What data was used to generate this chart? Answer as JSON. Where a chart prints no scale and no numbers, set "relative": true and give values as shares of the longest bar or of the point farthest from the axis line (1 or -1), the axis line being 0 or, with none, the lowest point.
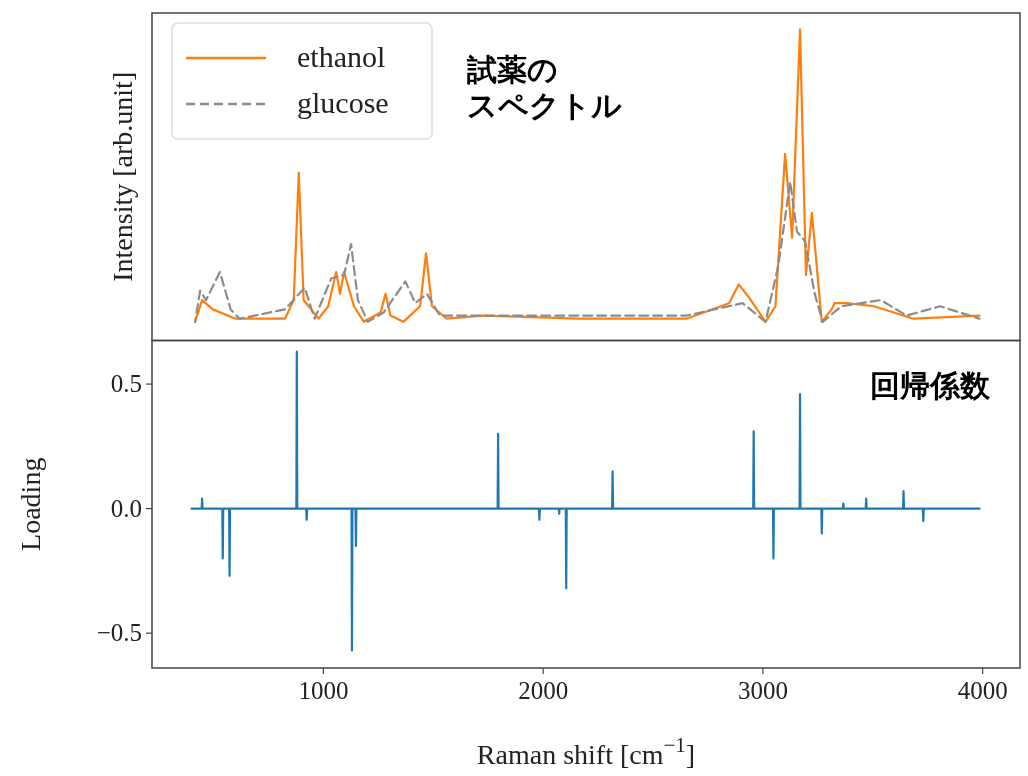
{
  "chart_data": [
    {
      "type": "line",
      "relative": true,
      "ylabel": "Intensity [arb.unit]",
      "xlim": [
        220,
        4170
      ],
      "legend": "top left",
      "annotations": [
        "試薬の",
        "スペクトル"
      ],
      "series": [
        {
          "name": "ethanol",
          "color": "#ff7f0e",
          "line_style": "solid",
          "x": [
            416,
            448,
            497,
            600,
            825,
            865,
            888,
            910,
            978,
            1022,
            1058,
            1076,
            1094,
            1139,
            1184,
            1260,
            1283,
            1305,
            1364,
            1440,
            1467,
            1494,
            1561,
            1723,
            2158,
            2652,
            2846,
            2890,
            2935,
            3012,
            3057,
            3101,
            3133,
            3169,
            3196,
            3223,
            3268,
            3313,
            3326,
            3384,
            3506,
            3685,
            3986
          ],
          "values": [
            0.06,
            0.13,
            0.1,
            0.07,
            0.07,
            0.13,
            0.54,
            0.13,
            0.07,
            0.11,
            0.22,
            0.15,
            0.22,
            0.11,
            0.06,
            0.09,
            0.15,
            0.08,
            0.06,
            0.11,
            0.28,
            0.11,
            0.07,
            0.08,
            0.07,
            0.07,
            0.12,
            0.18,
            0.14,
            0.06,
            0.11,
            0.6,
            0.33,
            1.0,
            0.21,
            0.41,
            0.06,
            0.1,
            0.12,
            0.12,
            0.11,
            0.07,
            0.08
          ]
        },
        {
          "name": "glucose",
          "color": "#8c8c8c",
          "line_style": "dashed",
          "x": [
            416,
            439,
            466,
            529,
            578,
            618,
            825,
            915,
            960,
            1036,
            1094,
            1126,
            1157,
            1202,
            1274,
            1373,
            1418,
            1471,
            1530,
            1723,
            2158,
            2652,
            2908,
            3012,
            3070,
            3124,
            3155,
            3191,
            3236,
            3272,
            3357,
            3537,
            3654,
            3806,
            3986
          ],
          "values": [
            0.06,
            0.16,
            0.13,
            0.22,
            0.1,
            0.07,
            0.1,
            0.17,
            0.07,
            0.2,
            0.21,
            0.31,
            0.13,
            0.06,
            0.09,
            0.19,
            0.12,
            0.15,
            0.08,
            0.08,
            0.08,
            0.08,
            0.12,
            0.06,
            0.24,
            0.51,
            0.35,
            0.32,
            0.15,
            0.06,
            0.11,
            0.13,
            0.08,
            0.11,
            0.07
          ]
        }
      ]
    },
    {
      "type": "line",
      "xlabel": "Raman shift [cm$^{−1}$]",
      "ylabel": "Loading",
      "xlim": [
        220,
        4170
      ],
      "xticks": [
        1000,
        2000,
        3000,
        4000
      ],
      "ylim": [
        -0.64,
        0.675
      ],
      "yticks": [
        {
          "value": -0.5,
          "label": "−0.5"
        },
        {
          "value": 0,
          "label": "0.0"
        },
        {
          "value": 0.5,
          "label": "0.5"
        }
      ],
      "annotations": [
        "回帰係数"
      ],
      "series": [
        {
          "color": "#1f77b4",
          "line_style": "solid",
          "x": [
            400,
            446,
            448,
            450,
            540,
            542,
            544,
            571,
            573,
            575,
            877,
            879,
            881,
            922,
            924,
            926,
            1128,
            1130,
            1132,
            1146,
            1148,
            1150,
            1793,
            1795,
            1797,
            1981,
            1983,
            1985,
            2071,
            2073,
            2075,
            2103,
            2105,
            2107,
            2314,
            2316,
            2318,
            2956,
            2958,
            2960,
            3046,
            3048,
            3050,
            3167,
            3169,
            3171,
            3266,
            3268,
            3270,
            3364,
            3366,
            3368,
            3468,
            3470,
            3472,
            3638,
            3640,
            3642,
            3728,
            3730,
            3732,
            3986
          ],
          "values": [
            0,
            0,
            0.04,
            0,
            0,
            -0.2,
            0,
            0,
            -0.27,
            0,
            0,
            0.63,
            0,
            0,
            -0.045,
            0,
            0,
            -0.57,
            0,
            0,
            -0.15,
            0,
            0,
            0.3,
            0,
            0,
            -0.045,
            0,
            0,
            -0.02,
            0,
            0,
            -0.32,
            0,
            0,
            0.15,
            0,
            0,
            0.31,
            0,
            0,
            -0.2,
            0,
            0,
            0.46,
            0,
            0,
            -0.1,
            0,
            0,
            0.02,
            0,
            0,
            0.04,
            0,
            0,
            0.07,
            0,
            0,
            -0.05,
            0,
            0
          ]
        }
      ]
    }
  ]
}
